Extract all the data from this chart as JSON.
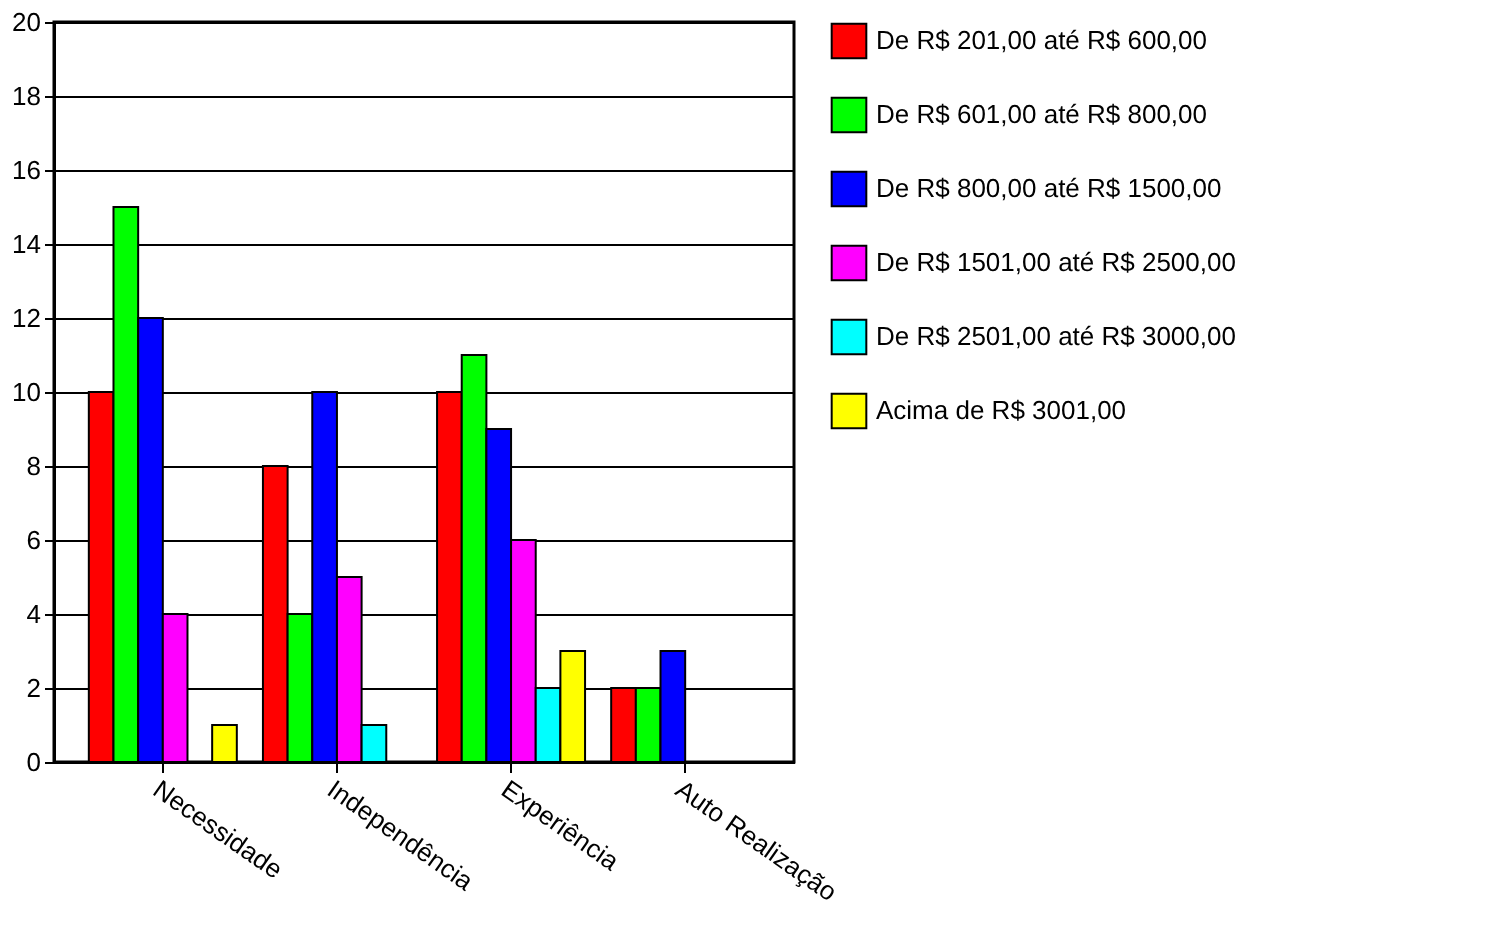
{
  "chart_data": {
    "type": "bar",
    "categories": [
      "Necessidade",
      "Independência",
      "Experiência",
      "Auto Realização"
    ],
    "series": [
      {
        "name": "De R$ 201,00 até R$ 600,00",
        "color": "#ff0000",
        "values": [
          10,
          8,
          10,
          2
        ]
      },
      {
        "name": "De R$ 601,00 até R$ 800,00",
        "color": "#00ff00",
        "values": [
          15,
          4,
          11,
          2
        ]
      },
      {
        "name": "De R$ 800,00 até R$ 1500,00",
        "color": "#0000ff",
        "values": [
          12,
          10,
          9,
          3
        ]
      },
      {
        "name": "De R$ 1501,00 até R$ 2500,00",
        "color": "#ff00ff",
        "values": [
          4,
          5,
          6,
          null
        ]
      },
      {
        "name": "De R$ 2501,00 até R$ 3000,00",
        "color": "#00ffff",
        "values": [
          null,
          1,
          2,
          null
        ]
      },
      {
        "name": "Acima de R$ 3001,00",
        "color": "#ffff00",
        "values": [
          1,
          null,
          3,
          null
        ]
      }
    ],
    "ylim": [
      0,
      20
    ],
    "yticks": [
      0,
      2,
      4,
      6,
      8,
      10,
      12,
      14,
      16,
      18,
      20
    ],
    "grid": "y",
    "legend": "right"
  }
}
